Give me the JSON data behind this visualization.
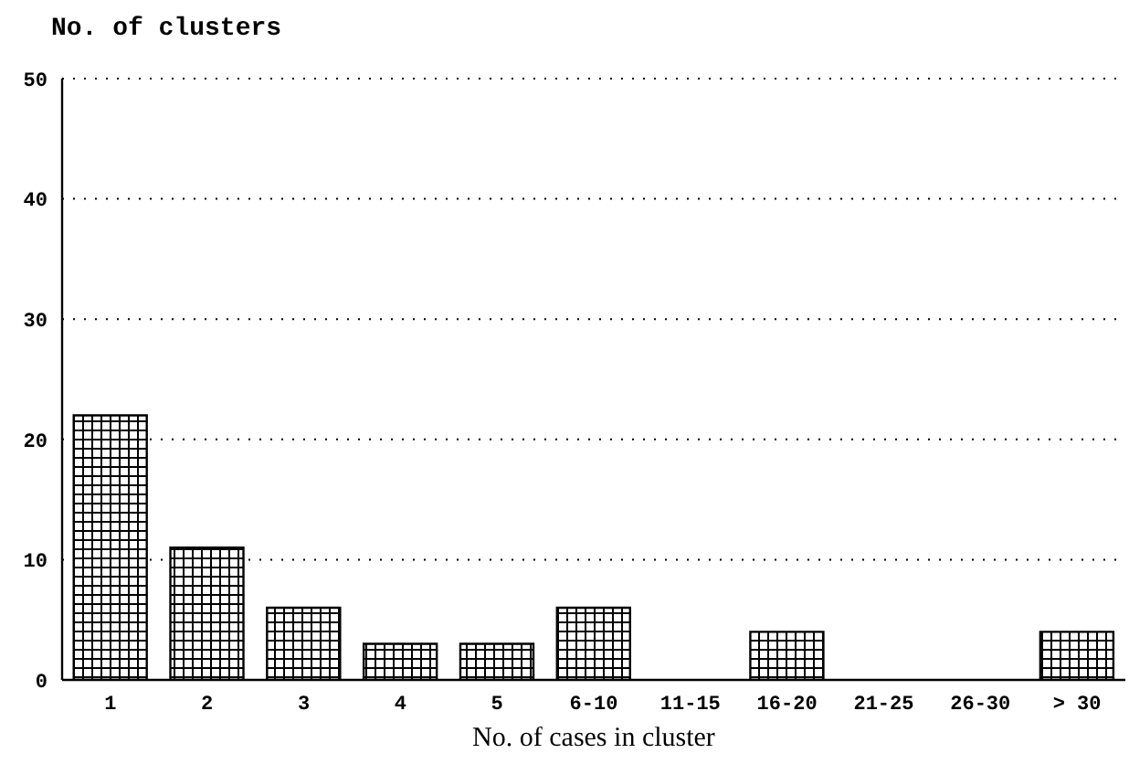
{
  "chart_data": {
    "type": "bar",
    "xlabel": "No. of cases in cluster",
    "ylabel": "No. of clusters",
    "categories": [
      "1",
      "2",
      "3",
      "4",
      "5",
      "6-10",
      "11-15",
      "16-20",
      "21-25",
      "26-30",
      "> 30"
    ],
    "values": [
      22,
      11,
      6,
      3,
      3,
      6,
      0,
      4,
      0,
      0,
      4
    ],
    "color": "#000000",
    "ylim": [
      0,
      50
    ],
    "yticks": [
      0,
      10,
      20,
      30,
      40,
      50
    ],
    "grid": "y"
  }
}
